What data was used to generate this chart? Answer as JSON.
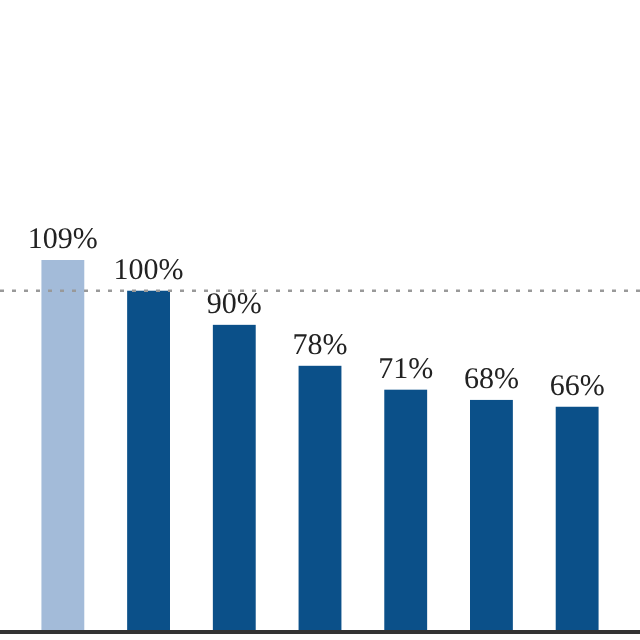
{
  "chart_data": {
    "type": "bar",
    "categories": [
      null,
      null,
      null,
      null,
      null,
      null,
      null
    ],
    "values": [
      109,
      100,
      90,
      78,
      71,
      68,
      66
    ],
    "colors": [
      "#a3bbd9",
      "#0b5089",
      "#0b5089",
      "#0b5089",
      "#0b5089",
      "#0b5089",
      "#0b5089"
    ],
    "value_labels": [
      "109%",
      "100%",
      "90%",
      "78%",
      "71%",
      "68%",
      "66%"
    ],
    "ref_lines": [
      {
        "axis": "y",
        "value": 100,
        "color": "#999999",
        "line_style": "dotted"
      }
    ]
  }
}
